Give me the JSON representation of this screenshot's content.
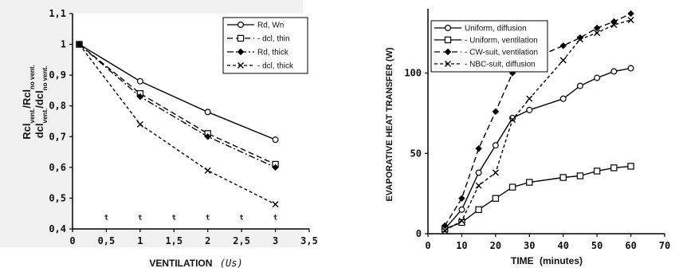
{
  "chart_data": [
    {
      "type": "line",
      "xlabel": "VENTILATION",
      "xlabel_unit": "(Us)",
      "ylabel": [
        "Rcl",
        "vent.",
        "/Rcl",
        "no vent.",
        "dcl",
        "vent.",
        "/dcl",
        "no vent."
      ],
      "xlim": [
        0,
        3.5
      ],
      "ylim": [
        0.4,
        1.1
      ],
      "xticks": [
        "0",
        "0,5",
        "1",
        "1,5",
        "2",
        "2,5",
        "3",
        "3,5"
      ],
      "yticks": [
        "0,4",
        "0,5",
        "0,6",
        "0,7",
        "0,8",
        "0,9",
        "1",
        "1,1"
      ],
      "legend_position": "top-right",
      "x": [
        0.1,
        1,
        2,
        3
      ],
      "series": [
        {
          "name": "Rd, Wn",
          "values": [
            1.0,
            0.88,
            0.78,
            0.69
          ],
          "marker": "circle",
          "dash": "solid"
        },
        {
          "name": "- dcl, thin",
          "values": [
            1.0,
            0.84,
            0.71,
            0.61
          ],
          "marker": "square",
          "dash": "long"
        },
        {
          "name": "Rd, thick",
          "values": [
            1.0,
            0.83,
            0.7,
            0.6
          ],
          "marker": "diamond",
          "dash": "dashdot"
        },
        {
          "name": "- dcl, thick",
          "values": [
            1.0,
            0.74,
            0.59,
            0.48
          ],
          "marker": "x",
          "dash": "short"
        }
      ],
      "bottom_marks": [
        "t",
        "t",
        "t",
        "t",
        "t",
        "t"
      ]
    },
    {
      "type": "line",
      "xlabel": "TIME",
      "xlabel_unit": "(minutes)",
      "ylabel": "EVAPORATIVE HEAT TRANSFER (W)",
      "xlim": [
        0,
        70
      ],
      "ylim": [
        0,
        140
      ],
      "xticks": [
        "0",
        "10",
        "20",
        "30",
        "40",
        "50",
        "60",
        "70"
      ],
      "yticks": [
        "0",
        "50",
        "100"
      ],
      "legend_position": "top-left",
      "series": [
        {
          "name": "Uniform, diffusion",
          "marker": "circle",
          "dash": "solid",
          "x": [
            5,
            10,
            15,
            20,
            25,
            30,
            40,
            45,
            50,
            55,
            60
          ],
          "values": [
            3,
            15,
            38,
            55,
            72,
            77,
            84,
            92,
            97,
            101,
            103
          ]
        },
        {
          "name": "- Uniform, ventilation",
          "marker": "square",
          "dash": "solid",
          "x": [
            5,
            10,
            15,
            20,
            25,
            30,
            40,
            45,
            50,
            55,
            60
          ],
          "values": [
            3,
            7,
            15,
            22,
            29,
            32,
            35,
            36,
            39,
            41,
            42
          ]
        },
        {
          "name": "- CW-suit, ventilation",
          "marker": "diamond",
          "dash": "long",
          "x": [
            5,
            10,
            15,
            20,
            25,
            30,
            40,
            45,
            50,
            55,
            60
          ],
          "values": [
            5,
            22,
            53,
            76,
            100,
            108,
            117,
            122,
            128,
            132,
            137
          ]
        },
        {
          "name": "- NBC-suit, diffusion",
          "marker": "x",
          "dash": "short",
          "x": [
            5,
            10,
            15,
            20,
            25,
            30,
            40,
            45,
            50,
            55,
            60
          ],
          "values": [
            2,
            8,
            30,
            38,
            71,
            84,
            108,
            121,
            125,
            130,
            133
          ]
        }
      ]
    }
  ]
}
